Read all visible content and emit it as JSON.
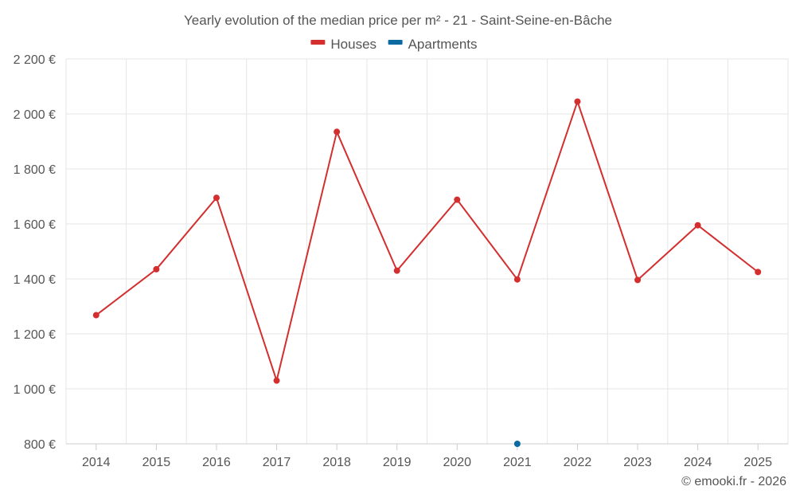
{
  "chart_data": {
    "type": "line",
    "title": "Yearly evolution of the median price per m² - 21 - Saint-Seine-en-Bâche",
    "categories": [
      "2014",
      "2015",
      "2016",
      "2017",
      "2018",
      "2019",
      "2020",
      "2021",
      "2022",
      "2023",
      "2024",
      "2025"
    ],
    "ylim": [
      800,
      2200
    ],
    "yticks": [
      800,
      1000,
      1200,
      1400,
      1600,
      1800,
      2000,
      2200
    ],
    "ytick_labels": [
      "800 €",
      "1 000 €",
      "1 200 €",
      "1 400 €",
      "1 600 €",
      "1 800 €",
      "2 000 €",
      "2 200 €"
    ],
    "grid": true,
    "legend_position": "top-center",
    "series": [
      {
        "name": "Houses",
        "color": "#d32f2f",
        "values": [
          1268,
          1435,
          1695,
          1030,
          1935,
          1430,
          1688,
          1398,
          2045,
          1396,
          1595,
          1425
        ]
      },
      {
        "name": "Apartments",
        "color": "#0a6aa1",
        "values": [
          null,
          null,
          null,
          null,
          null,
          null,
          null,
          800,
          null,
          null,
          null,
          null
        ]
      }
    ],
    "credit": "© emooki.fr - 2026"
  }
}
